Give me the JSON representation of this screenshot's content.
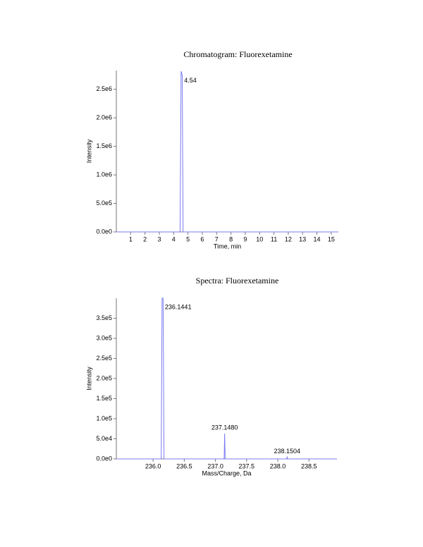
{
  "chart_data": [
    {
      "type": "line",
      "title": "Chromatogram: Fluorexetamine",
      "x_label": "Time, min",
      "y_label": "Intensity",
      "color": "#7b7bf0",
      "x": [
        0,
        4.45,
        4.52,
        4.54,
        4.6,
        4.66,
        15.5
      ],
      "values": [
        0,
        0,
        2810000,
        2810000,
        2740000,
        0,
        0
      ],
      "peak_labels": [
        {
          "x": 4.54,
          "y": 2810000,
          "label": "4.54"
        }
      ],
      "xlim": [
        0,
        15.5
      ],
      "xticks": [
        1,
        2,
        3,
        4,
        5,
        6,
        7,
        8,
        9,
        10,
        11,
        12,
        13,
        14,
        15
      ],
      "ylim": [
        0,
        2830000
      ],
      "yticks": [
        {
          "value": 0,
          "label": "0.0e0"
        },
        {
          "value": 500000,
          "label": "5.0e5"
        },
        {
          "value": 1000000,
          "label": "1.0e6"
        },
        {
          "value": 1500000,
          "label": "1.5e6"
        },
        {
          "value": 2000000,
          "label": "2.0e6"
        },
        {
          "value": 2500000,
          "label": "2.5e6"
        }
      ]
    },
    {
      "type": "line",
      "title": "Spectra: Fluorexetamine",
      "x_label": "Mass/Charge, Da",
      "y_label": "Intensity",
      "color": "#7b7bf0",
      "x": [
        235.41,
        236.13,
        236.1441,
        236.16,
        236.175,
        237.14,
        237.148,
        237.156,
        238.142,
        238.1504,
        238.158,
        238.95
      ],
      "values": [
        0,
        0,
        400000,
        400000,
        0,
        0,
        63000,
        0,
        0,
        4500,
        0,
        0
      ],
      "peak_labels": [
        {
          "x": 236.1441,
          "y": 400000,
          "label": "236.1441"
        },
        {
          "x": 237.148,
          "y": 63000,
          "label": "237.1480"
        },
        {
          "x": 238.1504,
          "y": 4500,
          "label": "238.1504"
        }
      ],
      "xlim": [
        235.41,
        238.95
      ],
      "xticks": [
        {
          "value": 236,
          "label": "236.0"
        },
        236.5,
        {
          "value": 237,
          "label": "237.0"
        },
        237.5,
        {
          "value": 238,
          "label": "238.0"
        },
        238.5
      ],
      "ylim": [
        0,
        400000
      ],
      "yticks": [
        {
          "value": 0,
          "label": "0.0e0"
        },
        {
          "value": 50000,
          "label": "5.0e4"
        },
        {
          "value": 100000,
          "label": "1.0e5"
        },
        {
          "value": 150000,
          "label": "1.5e5"
        },
        {
          "value": 200000,
          "label": "2.0e5"
        },
        {
          "value": 250000,
          "label": "2.5e5"
        },
        {
          "value": 300000,
          "label": "3.0e5"
        },
        {
          "value": 350000,
          "label": "3.5e5"
        }
      ]
    }
  ]
}
